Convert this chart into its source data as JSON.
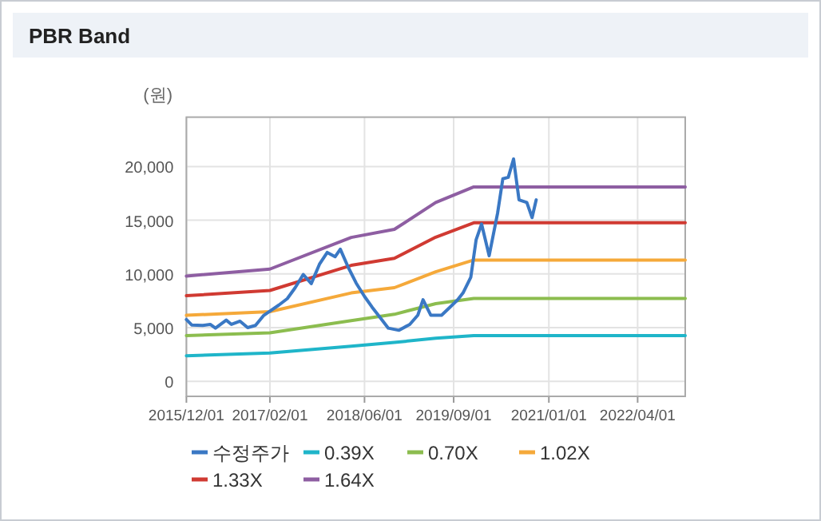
{
  "chart_data": {
    "type": "line",
    "title": "PBR Band",
    "ylabel": "(원)",
    "xlim": [
      "2015-12-01",
      "2022-12-01"
    ],
    "xticks": [
      {
        "value": "2015-12-01",
        "label": "2015/12/01"
      },
      {
        "value": "2017-02-01",
        "label": "2017/02/01"
      },
      {
        "value": "2018-06-01",
        "label": "2018/06/01"
      },
      {
        "value": "2019-09-01",
        "label": "2019/09/01"
      },
      {
        "value": "2021-01-01",
        "label": "2021/01/01"
      },
      {
        "value": "2022-04-01",
        "label": "2022/04/01"
      }
    ],
    "ylim": [
      -1400,
      24600
    ],
    "yticks": [
      0,
      {
        "value": 5000,
        "label": "5,000"
      },
      {
        "value": 10000,
        "label": "10,000"
      },
      {
        "value": 15000,
        "label": "15,000"
      },
      {
        "value": 20000,
        "label": "20,000"
      }
    ],
    "grid": true,
    "legend": "bottom",
    "marker": "none",
    "line_style": "solid",
    "series": [
      {
        "name": "수정주가",
        "color": "#3a78c4",
        "x": [
          "2015-12-01",
          "2015-12-28",
          "2016-02-22",
          "2016-04-01",
          "2016-04-28",
          "2016-06-22",
          "2016-07-19",
          "2016-09-01",
          "2016-10-10",
          "2016-11-19",
          "2017-01-01",
          "2017-02-10",
          "2017-03-19",
          "2017-05-01",
          "2017-06-10",
          "2017-07-22",
          "2017-09-01",
          "2017-10-13",
          "2017-11-22",
          "2018-01-01",
          "2018-01-28",
          "2018-03-10",
          "2018-04-19",
          "2018-06-01",
          "2018-07-10",
          "2018-08-22",
          "2018-10-01",
          "2018-11-25",
          "2019-01-19",
          "2019-03-01",
          "2019-03-28",
          "2019-05-07",
          "2019-07-01",
          "2019-08-13",
          "2019-09-22",
          "2019-10-19",
          "2019-11-28",
          "2019-12-25",
          "2020-01-22",
          "2020-03-01",
          "2020-04-13",
          "2020-05-10",
          "2020-06-07",
          "2020-07-04",
          "2020-08-01",
          "2020-09-10",
          "2020-10-07",
          "2020-10-28"
        ],
        "values": [
          5750,
          5250,
          5200,
          5300,
          4950,
          5700,
          5300,
          5600,
          5000,
          5200,
          6150,
          6650,
          7100,
          7700,
          8700,
          9950,
          9100,
          10900,
          12000,
          11600,
          12300,
          10600,
          9150,
          7900,
          6900,
          5900,
          4950,
          4750,
          5300,
          6150,
          7600,
          6150,
          6150,
          6900,
          7600,
          8230,
          9700,
          13170,
          14650,
          11700,
          15650,
          18860,
          19000,
          20700,
          16900,
          16650,
          15250,
          16900
        ]
      },
      {
        "name": "0.39X",
        "color": "#1fb5c9",
        "x": [
          "2015-12-01",
          "2017-02-01",
          "2018-03-25",
          "2018-11-01",
          "2019-06-01",
          "2019-12-13",
          "2022-12-01"
        ],
        "values": [
          2380,
          2630,
          3270,
          3620,
          4010,
          4260,
          4260
        ]
      },
      {
        "name": "0.70X",
        "color": "#8cbd4f",
        "x": [
          "2015-12-01",
          "2017-02-01",
          "2018-03-25",
          "2018-11-01",
          "2019-06-01",
          "2019-12-13",
          "2022-12-01"
        ],
        "values": [
          4260,
          4510,
          5650,
          6240,
          7230,
          7720,
          7720
        ]
      },
      {
        "name": "1.02X",
        "color": "#f5a93a",
        "x": [
          "2015-12-01",
          "2017-02-01",
          "2018-03-25",
          "2018-11-01",
          "2019-06-01",
          "2019-12-13",
          "2022-12-01"
        ],
        "values": [
          6150,
          6490,
          8230,
          8720,
          10200,
          11290,
          11290
        ]
      },
      {
        "name": "1.33X",
        "color": "#d03a32",
        "x": [
          "2015-12-01",
          "2017-02-01",
          "2018-03-25",
          "2018-11-01",
          "2019-06-01",
          "2019-12-13",
          "2022-12-01"
        ],
        "values": [
          7970,
          8460,
          10800,
          11450,
          13420,
          14760,
          14760
        ]
      },
      {
        "name": "1.64X",
        "color": "#8e5ea2",
        "x": [
          "2015-12-01",
          "2017-02-01",
          "2018-03-25",
          "2018-11-01",
          "2019-06-01",
          "2019-12-13",
          "2022-12-01"
        ],
        "values": [
          9800,
          10450,
          13400,
          14150,
          16650,
          18100,
          18100
        ]
      }
    ]
  }
}
